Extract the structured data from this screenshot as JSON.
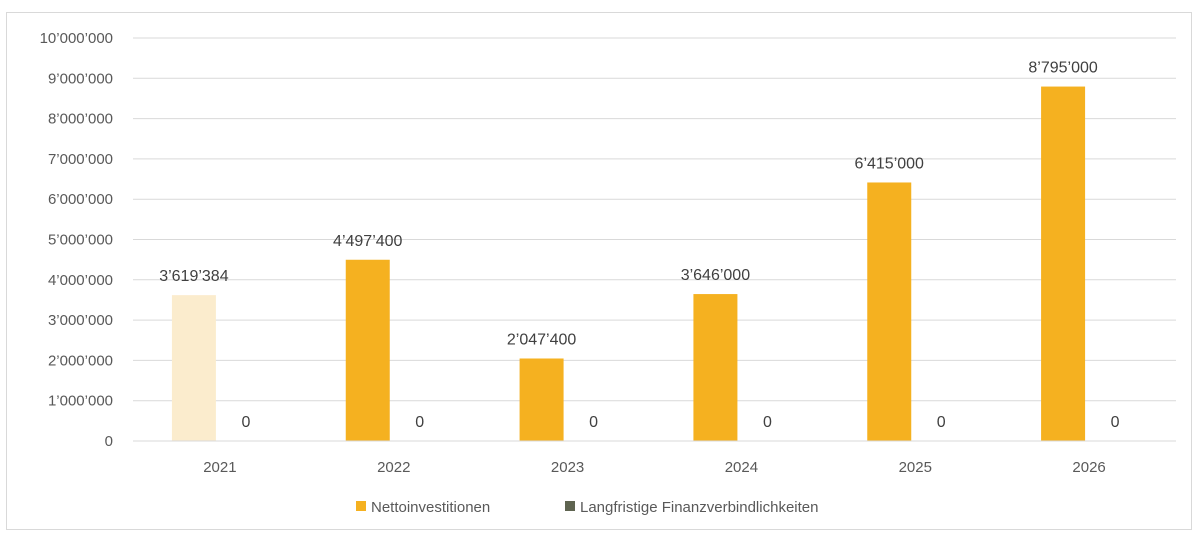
{
  "chart_data": {
    "type": "bar",
    "categories": [
      "2021",
      "2022",
      "2023",
      "2024",
      "2025",
      "2026"
    ],
    "series": [
      {
        "name": "Nettoinvestitionen",
        "values": [
          3619384,
          4497400,
          2047400,
          3646000,
          6415000,
          8795000
        ],
        "data_labels": [
          "3’619’384",
          "4’497’400",
          "2’047’400",
          "3’646’000",
          "6’415’000",
          "8’795’000"
        ],
        "color": "#f5b120",
        "point_colors": [
          "#fbeccd",
          "#f5b120",
          "#f5b120",
          "#f5b120",
          "#f5b120",
          "#f5b120"
        ]
      },
      {
        "name": "Langfristige Finanzverbindlichkeiten",
        "values": [
          0,
          0,
          0,
          0,
          0,
          0
        ],
        "data_labels": [
          "0",
          "0",
          "0",
          "0",
          "0",
          "0"
        ],
        "color": "#5f6450"
      }
    ],
    "ylim": [
      0,
      10000000
    ],
    "y_ticks": [
      "0",
      "1’000’000",
      "2’000’000",
      "3’000’000",
      "4’000’000",
      "5’000’000",
      "6’000’000",
      "7’000’000",
      "8’000’000",
      "9’000’000",
      "10’000’000"
    ],
    "y_tick_values": [
      0,
      1000000,
      2000000,
      3000000,
      4000000,
      5000000,
      6000000,
      7000000,
      8000000,
      9000000,
      10000000
    ],
    "grid": true,
    "legend_position": "bottom",
    "gridline_color": "#d9d9d9"
  }
}
